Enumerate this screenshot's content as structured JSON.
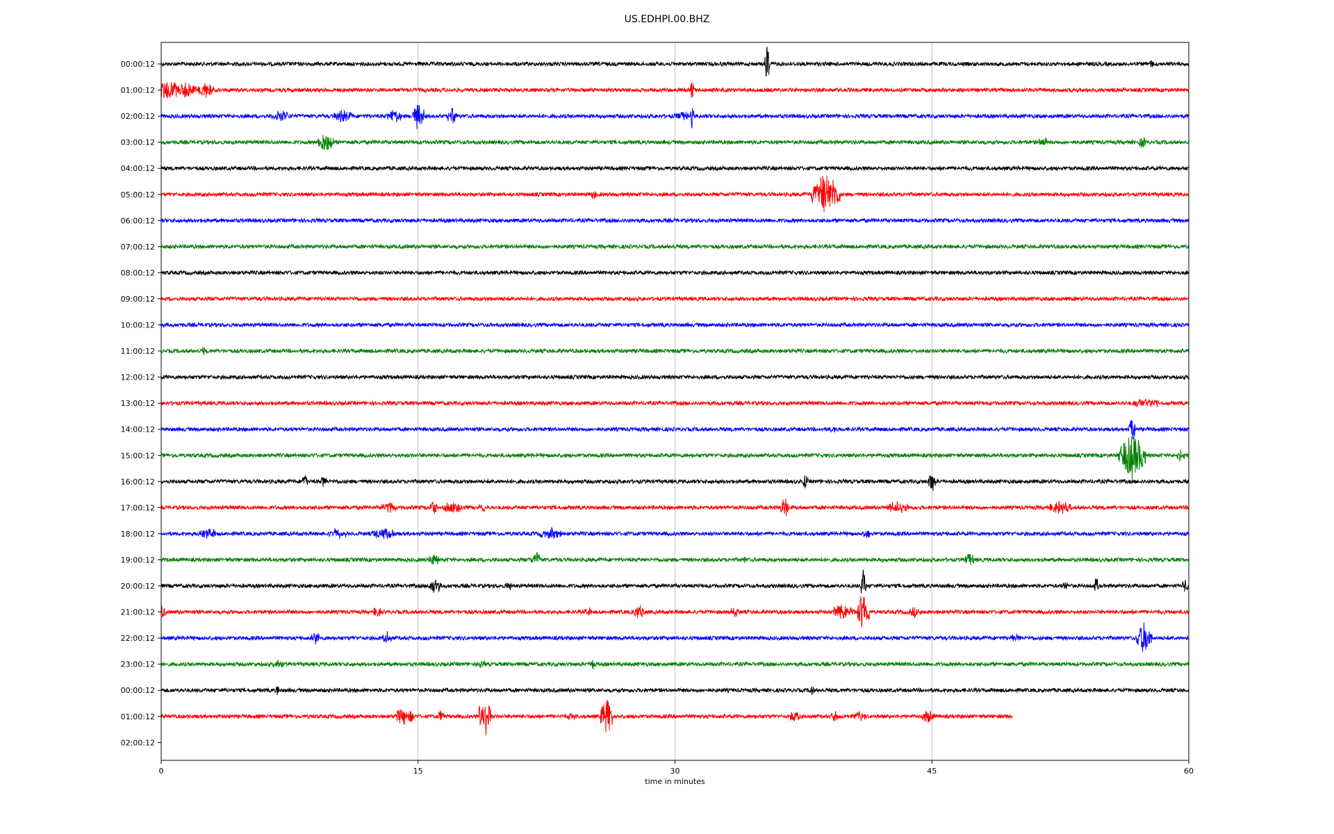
{
  "chart_data": {
    "type": "line",
    "title": "US.EDHPI.00.BHZ",
    "xlabel": "time in minutes",
    "ylabel": "",
    "xlim": [
      0,
      60
    ],
    "x_ticks": [
      "0",
      "15",
      "30",
      "45",
      "60"
    ],
    "grid": "vertical",
    "colors": [
      "#000000",
      "#ff0000",
      "#0000ff",
      "#008000"
    ],
    "rows": [
      {
        "label": "00:00:12",
        "color": "#000000",
        "end_minute": 60,
        "events": [
          {
            "t": 35.4,
            "amp": 1.8,
            "dur": 0.2
          },
          {
            "t": 57.8,
            "amp": 0.4,
            "dur": 0.2
          }
        ]
      },
      {
        "label": "01:00:12",
        "color": "#ff0000",
        "end_minute": 60,
        "events": [
          {
            "t": 0.4,
            "amp": 0.9,
            "dur": 1.2
          },
          {
            "t": 1.5,
            "amp": 0.8,
            "dur": 1.0
          },
          {
            "t": 2.6,
            "amp": 0.7,
            "dur": 0.8
          },
          {
            "t": 31.0,
            "amp": 1.1,
            "dur": 0.1
          }
        ]
      },
      {
        "label": "02:00:12",
        "color": "#0000ff",
        "end_minute": 60,
        "events": [
          {
            "t": 7.0,
            "amp": 0.5,
            "dur": 1.0
          },
          {
            "t": 10.6,
            "amp": 0.5,
            "dur": 1.0
          },
          {
            "t": 13.6,
            "amp": 0.6,
            "dur": 0.8
          },
          {
            "t": 15.0,
            "amp": 1.2,
            "dur": 0.6
          },
          {
            "t": 17.0,
            "amp": 0.7,
            "dur": 0.5
          },
          {
            "t": 30.5,
            "amp": 0.4,
            "dur": 1.0
          },
          {
            "t": 31.0,
            "amp": 1.0,
            "dur": 0.1
          }
        ]
      },
      {
        "label": "03:00:12",
        "color": "#008000",
        "end_minute": 60,
        "events": [
          {
            "t": 9.6,
            "amp": 1.0,
            "dur": 0.8
          },
          {
            "t": 51.5,
            "amp": 0.4,
            "dur": 0.5
          },
          {
            "t": 57.3,
            "amp": 0.5,
            "dur": 0.3
          }
        ]
      },
      {
        "label": "04:00:12",
        "color": "#000000",
        "end_minute": 60,
        "events": []
      },
      {
        "label": "05:00:12",
        "color": "#ff0000",
        "end_minute": 60,
        "events": [
          {
            "t": 25.2,
            "amp": 0.4,
            "dur": 0.3
          },
          {
            "t": 38.8,
            "amp": 1.8,
            "dur": 1.6
          }
        ]
      },
      {
        "label": "06:00:12",
        "color": "#0000ff",
        "end_minute": 60,
        "events": []
      },
      {
        "label": "07:00:12",
        "color": "#008000",
        "end_minute": 60,
        "events": []
      },
      {
        "label": "08:00:12",
        "color": "#000000",
        "end_minute": 60,
        "events": []
      },
      {
        "label": "09:00:12",
        "color": "#ff0000",
        "end_minute": 60,
        "events": []
      },
      {
        "label": "10:00:12",
        "color": "#0000ff",
        "end_minute": 60,
        "events": []
      },
      {
        "label": "11:00:12",
        "color": "#008000",
        "end_minute": 60,
        "events": [
          {
            "t": 2.5,
            "amp": 0.3,
            "dur": 0.2
          }
        ]
      },
      {
        "label": "12:00:12",
        "color": "#000000",
        "end_minute": 60,
        "events": []
      },
      {
        "label": "13:00:12",
        "color": "#ff0000",
        "end_minute": 60,
        "events": [
          {
            "t": 57.5,
            "amp": 0.4,
            "dur": 1.5
          }
        ]
      },
      {
        "label": "14:00:12",
        "color": "#0000ff",
        "end_minute": 60,
        "events": [
          {
            "t": 39.2,
            "amp": 0.3,
            "dur": 0.5
          },
          {
            "t": 56.7,
            "amp": 1.2,
            "dur": 0.3
          }
        ]
      },
      {
        "label": "15:00:12",
        "color": "#008000",
        "end_minute": 60,
        "events": [
          {
            "t": 56.7,
            "amp": 2.0,
            "dur": 1.5
          },
          {
            "t": 59.5,
            "amp": 0.5,
            "dur": 0.4
          }
        ]
      },
      {
        "label": "16:00:12",
        "color": "#000000",
        "end_minute": 60,
        "events": [
          {
            "t": 8.4,
            "amp": 0.8,
            "dur": 0.2
          },
          {
            "t": 9.5,
            "amp": 0.7,
            "dur": 0.2
          },
          {
            "t": 37.6,
            "amp": 0.7,
            "dur": 0.2
          },
          {
            "t": 45.0,
            "amp": 1.0,
            "dur": 0.3
          }
        ]
      },
      {
        "label": "17:00:12",
        "color": "#ff0000",
        "end_minute": 60,
        "events": [
          {
            "t": 13.3,
            "amp": 0.5,
            "dur": 0.8
          },
          {
            "t": 15.9,
            "amp": 0.7,
            "dur": 0.3
          },
          {
            "t": 17.0,
            "amp": 0.5,
            "dur": 1.0
          },
          {
            "t": 18.8,
            "amp": 0.4,
            "dur": 0.5
          },
          {
            "t": 36.4,
            "amp": 0.9,
            "dur": 0.4
          },
          {
            "t": 43.0,
            "amp": 0.5,
            "dur": 1.2
          },
          {
            "t": 52.5,
            "amp": 0.5,
            "dur": 1.2
          }
        ]
      },
      {
        "label": "18:00:12",
        "color": "#0000ff",
        "end_minute": 60,
        "events": [
          {
            "t": 2.8,
            "amp": 0.4,
            "dur": 1.2
          },
          {
            "t": 10.3,
            "amp": 0.4,
            "dur": 1.0
          },
          {
            "t": 13.0,
            "amp": 0.5,
            "dur": 1.2
          },
          {
            "t": 22.8,
            "amp": 0.5,
            "dur": 1.2
          },
          {
            "t": 41.2,
            "amp": 0.4,
            "dur": 0.3
          }
        ]
      },
      {
        "label": "19:00:12",
        "color": "#008000",
        "end_minute": 60,
        "events": [
          {
            "t": 15.9,
            "amp": 0.5,
            "dur": 0.5
          },
          {
            "t": 21.9,
            "amp": 0.6,
            "dur": 0.6
          },
          {
            "t": 34.0,
            "amp": 0.3,
            "dur": 0.3
          },
          {
            "t": 47.2,
            "amp": 0.7,
            "dur": 0.4
          }
        ]
      },
      {
        "label": "20:00:12",
        "color": "#000000",
        "end_minute": 60,
        "events": [
          {
            "t": 16.0,
            "amp": 0.7,
            "dur": 0.6
          },
          {
            "t": 20.3,
            "amp": 0.4,
            "dur": 0.3
          },
          {
            "t": 41.0,
            "amp": 1.5,
            "dur": 0.2
          },
          {
            "t": 52.8,
            "amp": 0.6,
            "dur": 0.2
          },
          {
            "t": 54.6,
            "amp": 0.7,
            "dur": 0.2
          },
          {
            "t": 59.8,
            "amp": 0.6,
            "dur": 0.3
          }
        ]
      },
      {
        "label": "21:00:12",
        "color": "#ff0000",
        "end_minute": 60,
        "events": [
          {
            "t": 0.1,
            "amp": 0.6,
            "dur": 0.2
          },
          {
            "t": 12.6,
            "amp": 0.4,
            "dur": 0.5
          },
          {
            "t": 25.0,
            "amp": 0.3,
            "dur": 0.5
          },
          {
            "t": 27.9,
            "amp": 0.6,
            "dur": 0.6
          },
          {
            "t": 33.5,
            "amp": 0.4,
            "dur": 0.4
          },
          {
            "t": 39.8,
            "amp": 0.7,
            "dur": 1.2
          },
          {
            "t": 41.0,
            "amp": 1.8,
            "dur": 0.6
          },
          {
            "t": 44.0,
            "amp": 0.4,
            "dur": 0.6
          }
        ]
      },
      {
        "label": "22:00:12",
        "color": "#0000ff",
        "end_minute": 60,
        "events": [
          {
            "t": 9.0,
            "amp": 0.5,
            "dur": 0.4
          },
          {
            "t": 13.2,
            "amp": 0.5,
            "dur": 0.5
          },
          {
            "t": 49.9,
            "amp": 0.3,
            "dur": 0.5
          },
          {
            "t": 57.4,
            "amp": 1.5,
            "dur": 0.8
          }
        ]
      },
      {
        "label": "23:00:12",
        "color": "#008000",
        "end_minute": 60,
        "events": [
          {
            "t": 6.8,
            "amp": 0.3,
            "dur": 0.5
          },
          {
            "t": 18.7,
            "amp": 0.3,
            "dur": 0.4
          },
          {
            "t": 25.2,
            "amp": 0.5,
            "dur": 0.3
          }
        ]
      },
      {
        "label": "00:00:12",
        "color": "#000000",
        "end_minute": 60,
        "events": [
          {
            "t": 6.8,
            "amp": 0.6,
            "dur": 0.1
          },
          {
            "t": 38.0,
            "amp": 0.4,
            "dur": 0.2
          }
        ]
      },
      {
        "label": "01:00:12",
        "color": "#ff0000",
        "end_minute": 49.7,
        "events": [
          {
            "t": 14.2,
            "amp": 0.8,
            "dur": 1.0
          },
          {
            "t": 16.3,
            "amp": 0.5,
            "dur": 0.3
          },
          {
            "t": 18.9,
            "amp": 2.2,
            "dur": 0.6
          },
          {
            "t": 24.0,
            "amp": 0.3,
            "dur": 0.5
          },
          {
            "t": 26.0,
            "amp": 1.6,
            "dur": 0.6
          },
          {
            "t": 37.0,
            "amp": 0.5,
            "dur": 0.5
          },
          {
            "t": 39.3,
            "amp": 0.6,
            "dur": 0.3
          },
          {
            "t": 40.8,
            "amp": 0.4,
            "dur": 0.6
          },
          {
            "t": 44.8,
            "amp": 0.6,
            "dur": 0.6
          }
        ]
      },
      {
        "label": "02:00:12",
        "color": "#000000",
        "end_minute": 0,
        "events": []
      }
    ]
  }
}
